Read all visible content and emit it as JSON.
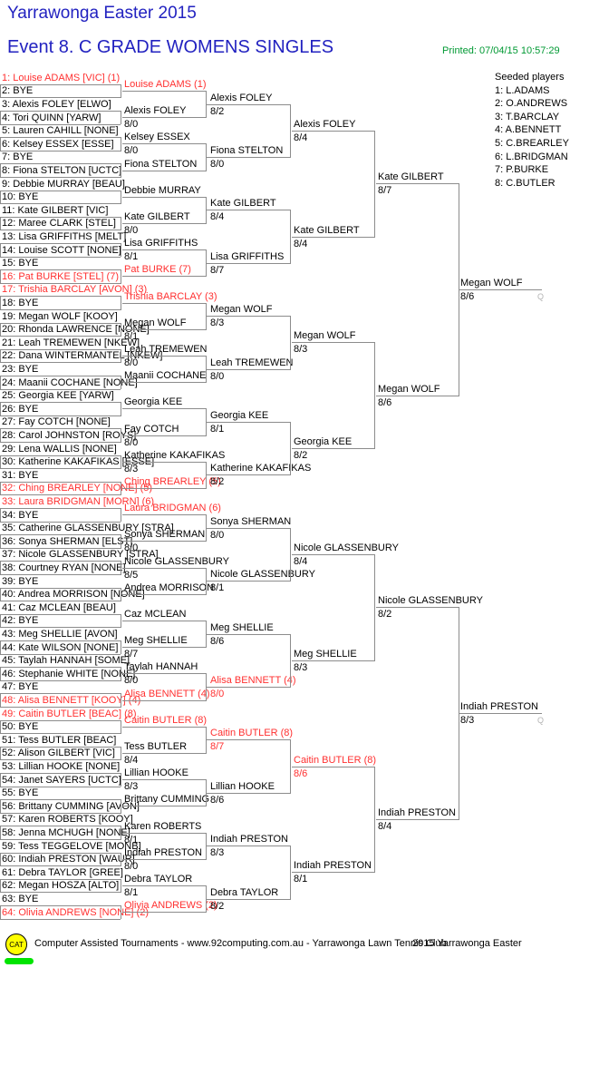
{
  "header": {
    "title": "Yarrawonga Easter 2015",
    "event": "Event 8. C GRADE WOMENS SINGLES",
    "printed": "Printed: 07/04/15 10:57:29"
  },
  "seeded": {
    "heading": "Seeded players",
    "items": [
      "1: L.ADAMS",
      "2: O.ANDREWS",
      "3: T.BARCLAY",
      "4: A.BENNETT",
      "5: C.BREARLEY",
      "6: L.BRIDGMAN",
      "7: P.BURKE",
      "8: C.BUTLER"
    ]
  },
  "colors": {
    "heading_blue": "#2222c0",
    "printed_green": "#009933",
    "seed_red": "#ff3030",
    "line_gray": "#8c8c8c",
    "logo_yellow": "#ffff00",
    "bar_green": "#00e400"
  },
  "bracket": {
    "round1": [
      {
        "t": "1: Louise ADAMS [VIC] (1)",
        "seed": true
      },
      {
        "t": "2: BYE"
      },
      {
        "t": "3: Alexis FOLEY [ELWO]"
      },
      {
        "t": "4: Tori QUINN [YARW]"
      },
      {
        "t": "5: Lauren CAHILL [NONE]"
      },
      {
        "t": "6: Kelsey ESSEX [ESSE]"
      },
      {
        "t": "7: BYE"
      },
      {
        "t": "8: Fiona STELTON [UCTC]"
      },
      {
        "t": "9: Debbie MURRAY [BEAU]"
      },
      {
        "t": "10: BYE"
      },
      {
        "t": "11: Kate GILBERT [VIC]"
      },
      {
        "t": "12: Maree CLARK [STEL]"
      },
      {
        "t": "13: Lisa GRIFFITHS [MELT]"
      },
      {
        "t": "14: Louise SCOTT [NONE]"
      },
      {
        "t": "15: BYE"
      },
      {
        "t": "16: Pat BURKE [STEL] (7)",
        "seed": true
      },
      {
        "t": "17: Trishia BARCLAY [AVON] (3)",
        "seed": true
      },
      {
        "t": "18: BYE"
      },
      {
        "t": "19: Megan WOLF [KOOY]"
      },
      {
        "t": "20: Rhonda LAWRENCE [NONE]"
      },
      {
        "t": "21: Leah TREMEWEN [NKEW]"
      },
      {
        "t": "22: Dana WINTERMANTEL [NKEW]"
      },
      {
        "t": "23: BYE"
      },
      {
        "t": "24: Maanii COCHANE [NONE]"
      },
      {
        "t": "25: Georgia KEE [YARW]"
      },
      {
        "t": "26: BYE"
      },
      {
        "t": "27: Fay COTCH [NONE]"
      },
      {
        "t": "28: Carol JOHNSTON [ROYS]"
      },
      {
        "t": "29: Lena WALLIS [NONE]"
      },
      {
        "t": "30: Katherine KAKAFIKAS [ESSE]"
      },
      {
        "t": "31: BYE"
      },
      {
        "t": "32: Ching BREARLEY [NONE] (5)",
        "seed": true
      },
      {
        "t": "33: Laura BRIDGMAN [MORN] (6)",
        "seed": true
      },
      {
        "t": "34: BYE"
      },
      {
        "t": "35: Catherine GLASSENBURY [STRA]"
      },
      {
        "t": "36: Sonya SHERMAN [ELST]"
      },
      {
        "t": "37: Nicole GLASSENBURY [STRA]"
      },
      {
        "t": "38: Courtney RYAN [NONE]"
      },
      {
        "t": "39: BYE"
      },
      {
        "t": "40: Andrea MORRISON [NONE]"
      },
      {
        "t": "41: Caz MCLEAN [BEAU]"
      },
      {
        "t": "42: BYE"
      },
      {
        "t": "43: Meg SHELLIE [AVON]"
      },
      {
        "t": "44: Kate WILSON [NONE]"
      },
      {
        "t": "45: Taylah HANNAH [SOME]"
      },
      {
        "t": "46: Stephanie WHITE [NONE]"
      },
      {
        "t": "47: BYE"
      },
      {
        "t": "48: Alisa BENNETT [KOOY] (4)",
        "seed": true
      },
      {
        "t": "49: Caitin BUTLER [BEAC] (8)",
        "seed": true
      },
      {
        "t": "50: BYE"
      },
      {
        "t": "51: Tess BUTLER [BEAC]"
      },
      {
        "t": "52: Alison GILBERT [VIC]"
      },
      {
        "t": "53: Lillian HOOKE [NONE]"
      },
      {
        "t": "54: Janet SAYERS [UCTC]"
      },
      {
        "t": "55: BYE"
      },
      {
        "t": "56: Brittany CUMMING [AVON]"
      },
      {
        "t": "57: Karen ROBERTS [KOOY]"
      },
      {
        "t": "58: Jenna MCHUGH [NONE]"
      },
      {
        "t": "59: Tess TEGGELOVE [MONB]"
      },
      {
        "t": "60: Indiah PRESTON [WAUR]"
      },
      {
        "t": "61: Debra TAYLOR [GREE]"
      },
      {
        "t": "62: Megan HOSZA [ALTO]"
      },
      {
        "t": "63: BYE"
      },
      {
        "t": "64: Olivia ANDREWS [NONE] (2)",
        "seed": true
      }
    ],
    "rounds": [
      [
        {
          "n": "Louise ADAMS (1)",
          "seed": true
        },
        {
          "n": "Alexis FOLEY",
          "s": "8/0"
        },
        {
          "n": "Kelsey ESSEX",
          "s": "8/0"
        },
        {
          "n": "Fiona STELTON"
        },
        {
          "n": "Debbie MURRAY"
        },
        {
          "n": "Kate GILBERT",
          "s": "8/0"
        },
        {
          "n": "Lisa GRIFFITHS",
          "s": "8/1"
        },
        {
          "n": "Pat BURKE (7)",
          "seed": true
        },
        {
          "n": "Trishia BARCLAY (3)",
          "seed": true
        },
        {
          "n": "Megan WOLF",
          "s": "8/1"
        },
        {
          "n": "Leah TREMEWEN",
          "s": "8/0"
        },
        {
          "n": "Maanii COCHANE"
        },
        {
          "n": "Georgia KEE"
        },
        {
          "n": "Fay COTCH",
          "s": "8/0"
        },
        {
          "n": "Katherine KAKAFIKAS",
          "s": "8/3"
        },
        {
          "n": "Ching BREARLEY (5)",
          "seed": true
        },
        {
          "n": "Laura BRIDGMAN (6)",
          "seed": true
        },
        {
          "n": "Sonya SHERMAN",
          "s": "8/0"
        },
        {
          "n": "Nicole GLASSENBURY",
          "s": "8/5"
        },
        {
          "n": "Andrea MORRISON"
        },
        {
          "n": "Caz MCLEAN"
        },
        {
          "n": "Meg SHELLIE",
          "s": "8/7"
        },
        {
          "n": "Taylah HANNAH",
          "s": "8/0"
        },
        {
          "n": "Alisa BENNETT (4)",
          "seed": true
        },
        {
          "n": "Caitin BUTLER (8)",
          "seed": true
        },
        {
          "n": "Tess BUTLER",
          "s": "8/4"
        },
        {
          "n": "Lillian HOOKE",
          "s": "8/3"
        },
        {
          "n": "Brittany CUMMING"
        },
        {
          "n": "Karen ROBERTS",
          "s": "8/1"
        },
        {
          "n": "Indiah PRESTON",
          "s": "8/0"
        },
        {
          "n": "Debra TAYLOR",
          "s": "8/1"
        },
        {
          "n": "Olivia ANDREWS (2)",
          "seed": true
        }
      ],
      [
        {
          "n": "Alexis FOLEY",
          "s": "8/2"
        },
        {
          "n": "Fiona STELTON",
          "s": "8/0"
        },
        {
          "n": "Kate GILBERT",
          "s": "8/4"
        },
        {
          "n": "Lisa GRIFFITHS",
          "s": "8/7"
        },
        {
          "n": "Megan WOLF",
          "s": "8/3"
        },
        {
          "n": "Leah TREMEWEN",
          "s": "8/0"
        },
        {
          "n": "Georgia KEE",
          "s": "8/1"
        },
        {
          "n": "Katherine KAKAFIKAS",
          "s": "8/2"
        },
        {
          "n": "Sonya SHERMAN",
          "s": "8/0"
        },
        {
          "n": "Nicole GLASSENBURY",
          "s": "8/1"
        },
        {
          "n": "Meg SHELLIE",
          "s": "8/6"
        },
        {
          "n": "Alisa BENNETT (4)",
          "s": "8/0",
          "seed": true
        },
        {
          "n": "Caitin BUTLER (8)",
          "s": "8/7",
          "seed": true
        },
        {
          "n": "Lillian HOOKE",
          "s": "8/6"
        },
        {
          "n": "Indiah PRESTON",
          "s": "8/3"
        },
        {
          "n": "Debra TAYLOR",
          "s": "8/2"
        }
      ],
      [
        {
          "n": "Alexis FOLEY",
          "s": "8/4"
        },
        {
          "n": "Kate GILBERT",
          "s": "8/4"
        },
        {
          "n": "Megan WOLF",
          "s": "8/3"
        },
        {
          "n": "Georgia KEE",
          "s": "8/2"
        },
        {
          "n": "Nicole GLASSENBURY",
          "s": "8/4"
        },
        {
          "n": "Meg SHELLIE",
          "s": "8/3"
        },
        {
          "n": "Caitin BUTLER (8)",
          "s": "8/6",
          "seed": true
        },
        {
          "n": "Indiah PRESTON",
          "s": "8/1"
        }
      ],
      [
        {
          "n": "Kate GILBERT",
          "s": "8/7"
        },
        {
          "n": "Megan WOLF",
          "s": "8/6"
        },
        {
          "n": "Nicole GLASSENBURY",
          "s": "8/2"
        },
        {
          "n": "Indiah PRESTON",
          "s": "8/4"
        }
      ],
      [
        {
          "n": "Megan WOLF",
          "s": "8/6",
          "q": "Q"
        },
        {
          "n": "Indiah PRESTON",
          "s": "8/3",
          "q": "Q"
        }
      ]
    ]
  },
  "footer": {
    "logo": "CAT",
    "text1": "Computer Assisted Tournaments - www.92computing.com.au -  Yarrawonga Lawn Tennis Club",
    "text2": "2015 Yarrawonga Easter"
  }
}
